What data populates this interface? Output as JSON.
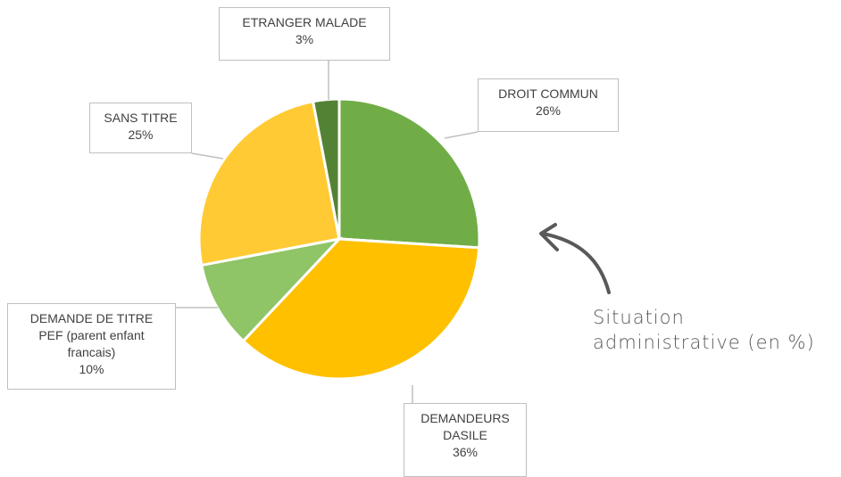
{
  "chart_data": {
    "type": "pie",
    "annotation": "Situation\nadministrative (en %)",
    "categories": [
      "DROIT COMMUN",
      "DEMANDEURS\nDASILE",
      "DEMANDE DE TITRE\nPEF (parent enfant\nfrancais)",
      "SANS TITRE",
      "ETRANGER MALADE"
    ],
    "values": [
      26,
      36,
      10,
      25,
      3
    ],
    "value_labels": [
      "26%",
      "36%",
      "10%",
      "25%",
      "3%"
    ],
    "colors": [
      "#70ad47",
      "#ffc000",
      "#8fc467",
      "#ffca33",
      "#548235"
    ]
  }
}
